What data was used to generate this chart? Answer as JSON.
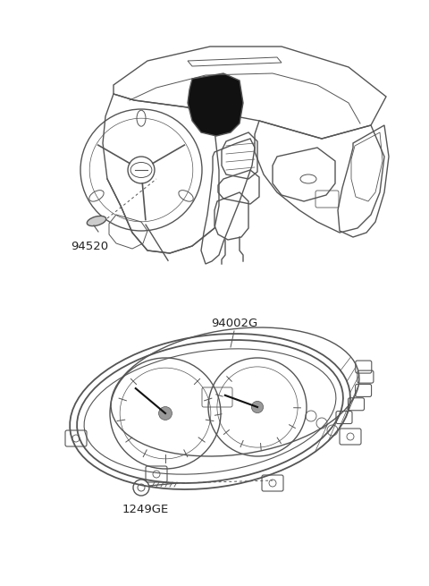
{
  "background_color": "#ffffff",
  "fig_width": 4.8,
  "fig_height": 6.55,
  "dpi": 100,
  "labels": {
    "part1_label": "94520",
    "part2_label": "94002G",
    "part3_label": "1249GE"
  },
  "line_color": "#555555",
  "dark_color": "#111111",
  "fill_black": "#111111",
  "font_size_label": 9.5
}
